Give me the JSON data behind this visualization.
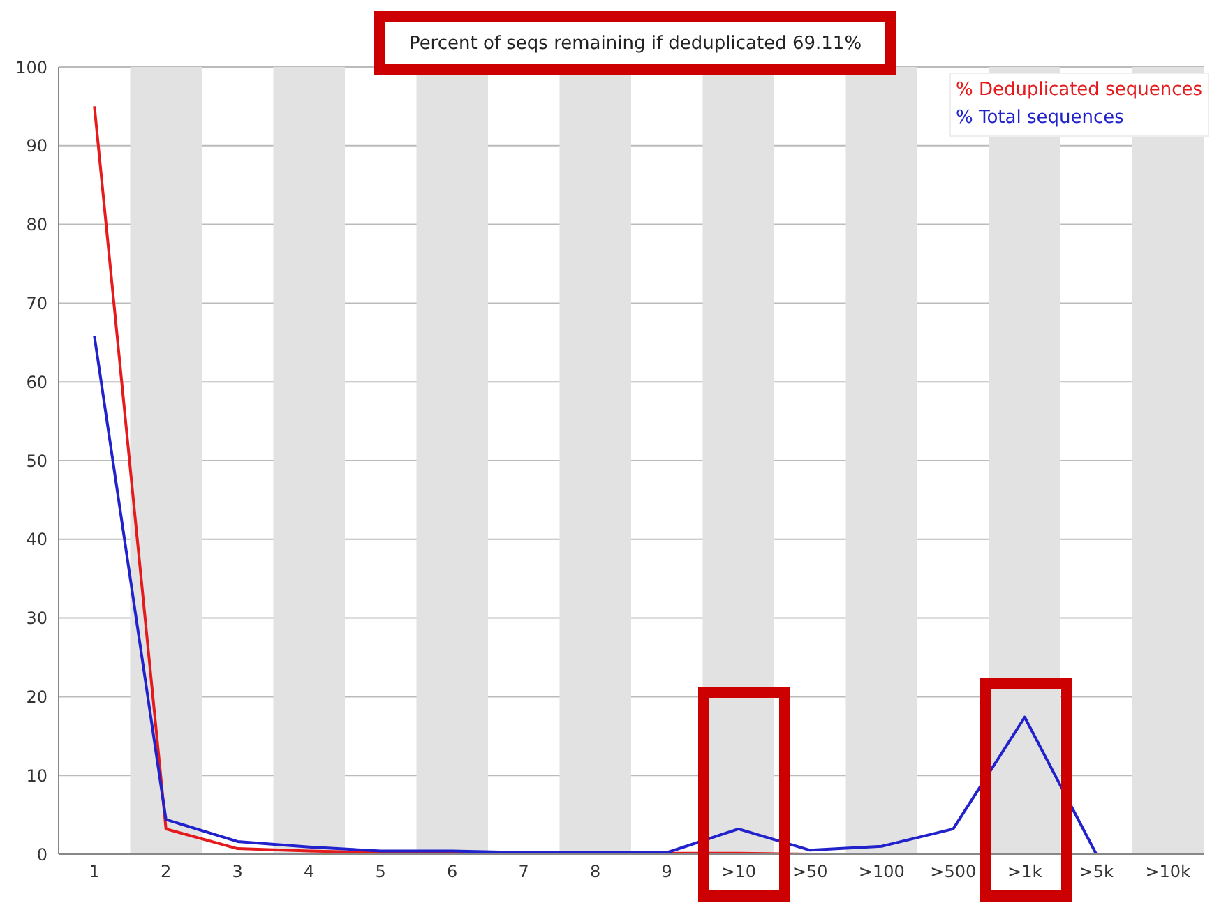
{
  "chart_data": {
    "type": "line",
    "title": "Percent of seqs remaining if deduplicated 69.11%",
    "categories": [
      "1",
      "2",
      "3",
      "4",
      "5",
      "6",
      "7",
      "8",
      "9",
      ">10",
      ">50",
      ">100",
      ">500",
      ">1k",
      ">5k",
      ">10k"
    ],
    "series": [
      {
        "name": "% Deduplicated sequences",
        "color": "#e41a1c",
        "values": [
          95,
          3.2,
          0.7,
          0.4,
          0.2,
          0.1,
          0.1,
          0.1,
          0.1,
          0.1,
          0,
          0,
          0,
          0,
          0,
          0
        ]
      },
      {
        "name": "% Total sequences",
        "color": "#2222cc",
        "values": [
          65.8,
          4.4,
          1.6,
          0.9,
          0.4,
          0.4,
          0.2,
          0.2,
          0.2,
          3.2,
          0.5,
          1.0,
          3.2,
          17.4,
          0,
          0
        ]
      }
    ],
    "ylim": [
      0,
      100
    ],
    "yticks": [
      0,
      10,
      20,
      30,
      40,
      50,
      60,
      70,
      80,
      90,
      100
    ],
    "grid": "y",
    "legend": "top right",
    "marker": "none",
    "line_style": "solid",
    "bands": [
      {
        "axis": "x",
        "from": "2",
        "to": "2",
        "color": "#e2e2e2"
      },
      {
        "axis": "x",
        "from": "4",
        "to": "4",
        "color": "#e2e2e2"
      },
      {
        "axis": "x",
        "from": "6",
        "to": "6",
        "color": "#e2e2e2"
      },
      {
        "axis": "x",
        "from": "8",
        "to": "8",
        "color": "#e2e2e2"
      },
      {
        "axis": "x",
        "from": ">10",
        "to": ">10",
        "color": "#e2e2e2"
      },
      {
        "axis": "x",
        "from": ">100",
        "to": ">100",
        "color": "#e2e2e2"
      },
      {
        "axis": "x",
        "from": ">1k",
        "to": ">1k",
        "color": "#e2e2e2"
      },
      {
        "axis": "x",
        "from": ">10k",
        "to": ">10k",
        "color": "#e2e2e2"
      }
    ]
  }
}
